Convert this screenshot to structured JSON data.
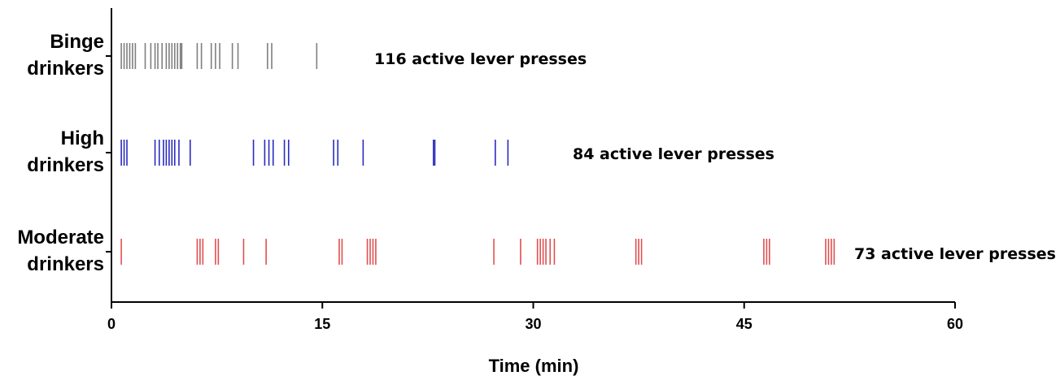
{
  "chart_data": {
    "type": "raster",
    "xlabel": "Time (min)",
    "xlim": [
      0,
      60
    ],
    "xticks": [
      "0",
      "15",
      "30",
      "45",
      "60"
    ],
    "xtick_values": [
      0,
      15,
      30,
      45,
      60
    ],
    "grid": false,
    "series": [
      {
        "name_line1": "Binge",
        "name_line2": "drinkers",
        "color": "#7f7f7f",
        "annotation": "116 active lever presses",
        "events": [
          0.7,
          0.9,
          1.1,
          1.3,
          1.5,
          1.7,
          2.4,
          2.8,
          3.1,
          3.3,
          3.6,
          3.9,
          4.1,
          4.3,
          4.5,
          4.7,
          4.9,
          5.0,
          6.1,
          6.4,
          7.1,
          7.4,
          7.7,
          8.6,
          9.0,
          11.1,
          11.4,
          14.6
        ]
      },
      {
        "name_line1": "High",
        "name_line2": "drinkers",
        "color": "#2b2bc0",
        "annotation": "84 active lever presses",
        "events": [
          0.7,
          0.9,
          1.1,
          3.1,
          3.4,
          3.7,
          3.9,
          4.1,
          4.3,
          4.5,
          4.8,
          5.6,
          10.1,
          10.9,
          11.2,
          11.5,
          12.3,
          12.6,
          15.8,
          16.1,
          17.9,
          22.9,
          23.0,
          27.3,
          28.2
        ]
      },
      {
        "name_line1": "Moderate",
        "name_line2": "drinkers",
        "color": "#e05050",
        "annotation": "73 active lever presses",
        "events": [
          0.7,
          6.1,
          6.3,
          6.5,
          7.4,
          7.6,
          9.4,
          11.0,
          16.2,
          16.4,
          18.2,
          18.4,
          18.6,
          18.8,
          27.2,
          29.1,
          30.3,
          30.5,
          30.7,
          30.9,
          31.2,
          31.5,
          37.3,
          37.5,
          37.7,
          46.4,
          46.6,
          46.8,
          50.8,
          51.0,
          51.2,
          51.4
        ]
      }
    ]
  }
}
